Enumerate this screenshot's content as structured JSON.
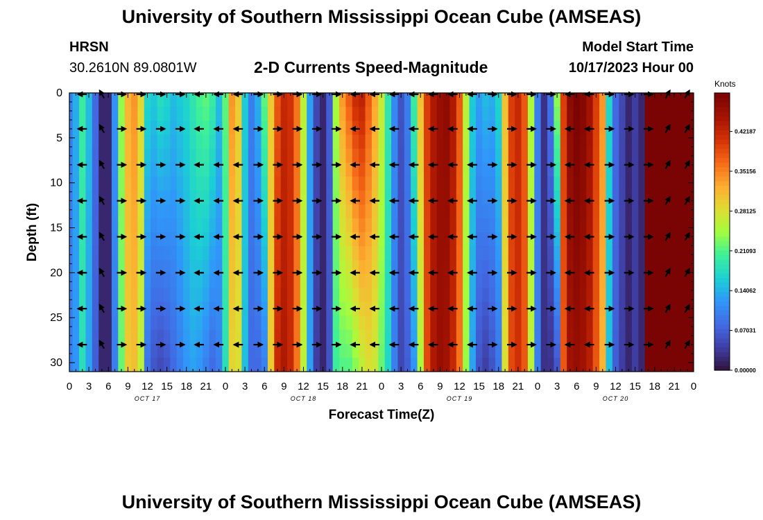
{
  "header": {
    "title": "University of Southern Mississippi Ocean Cube (AMSEAS)",
    "station": "HRSN",
    "coords": "30.2610N  89.0801W",
    "subtitle": "2-D Currents Speed-Magnitude",
    "model_label": "Model Start Time",
    "model_time": "10/17/2023 Hour 00"
  },
  "footer": {
    "title": "University of Southern Mississippi Ocean Cube (AMSEAS)"
  },
  "colors": {
    "arrow": "#000000",
    "frame": "#000000"
  },
  "chart_data": {
    "type": "heatmap",
    "title": "2-D Currents Speed-Magnitude",
    "xlabel": "Forecast Time(Z)",
    "ylabel": "Depth (ft)",
    "xlim": [
      0,
      96
    ],
    "ylim": [
      0,
      31
    ],
    "y_reversed": true,
    "x_ticks": [
      0,
      3,
      6,
      9,
      12,
      15,
      18,
      21,
      24,
      27,
      30,
      33,
      36,
      39,
      42,
      45,
      48,
      51,
      54,
      57,
      60,
      63,
      66,
      69,
      72,
      75,
      78,
      81,
      84,
      87,
      90,
      93,
      96
    ],
    "x_tick_labels": [
      "0",
      "3",
      "6",
      "9",
      "12",
      "15",
      "18",
      "21",
      "0",
      "3",
      "6",
      "9",
      "12",
      "15",
      "18",
      "21",
      "0",
      "3",
      "6",
      "9",
      "12",
      "15",
      "18",
      "21",
      "0",
      "3",
      "6",
      "9",
      "12",
      "15",
      "18",
      "21",
      "0"
    ],
    "y_ticks": [
      0,
      5,
      10,
      15,
      20,
      25,
      30
    ],
    "y_tick_labels": [
      "0",
      "5",
      "10",
      "15",
      "20",
      "25",
      "30"
    ],
    "day_labels": [
      {
        "hour": 12,
        "text": "OCT 17"
      },
      {
        "hour": 36,
        "text": "OCT 18"
      },
      {
        "hour": 60,
        "text": "OCT 19"
      },
      {
        "hour": 84,
        "text": "OCT 20"
      }
    ],
    "colorbar": {
      "label": "Knots",
      "min": 0.0,
      "max": 0.49,
      "tick_values": [
        0.0,
        0.07031,
        0.14062,
        0.21093,
        0.28125,
        0.35156,
        0.42187
      ],
      "tick_labels": [
        "0.00000",
        "0.07031",
        "0.14062",
        "0.21093",
        "0.28125",
        "0.35156",
        "0.42187"
      ]
    },
    "time_hours": [
      0,
      1,
      2,
      3,
      4,
      5,
      6,
      7,
      8,
      9,
      10,
      11,
      12,
      13,
      14,
      15,
      16,
      17,
      18,
      19,
      20,
      21,
      22,
      23,
      24,
      25,
      26,
      27,
      28,
      29,
      30,
      31,
      32,
      33,
      34,
      35,
      36,
      37,
      38,
      39,
      40,
      41,
      42,
      43,
      44,
      45,
      46,
      47,
      48,
      49,
      50,
      51,
      52,
      53,
      54,
      55,
      56,
      57,
      58,
      59,
      60,
      61,
      62,
      63,
      64,
      65,
      66,
      67,
      68,
      69,
      70,
      71,
      72,
      73,
      74,
      75,
      76,
      77,
      78,
      79,
      80,
      81,
      82,
      83,
      84,
      85,
      86,
      87,
      88,
      89,
      90,
      91,
      92,
      93,
      94,
      95,
      96
    ],
    "speed_surface_knots": [
      0.1,
      0.14,
      0.2,
      0.15,
      0.08,
      0.02,
      0.02,
      0.12,
      0.24,
      0.32,
      0.34,
      0.29,
      0.17,
      0.16,
      0.18,
      0.17,
      0.15,
      0.16,
      0.17,
      0.19,
      0.21,
      0.22,
      0.2,
      0.15,
      0.22,
      0.34,
      0.3,
      0.16,
      0.1,
      0.14,
      0.22,
      0.3,
      0.38,
      0.42,
      0.41,
      0.36,
      0.26,
      0.13,
      0.05,
      0.02,
      0.07,
      0.25,
      0.34,
      0.38,
      0.42,
      0.43,
      0.38,
      0.33,
      0.27,
      0.19,
      0.11,
      0.06,
      0.1,
      0.2,
      0.31,
      0.4,
      0.44,
      0.46,
      0.47,
      0.44,
      0.38,
      0.26,
      0.16,
      0.13,
      0.15,
      0.14,
      0.17,
      0.31,
      0.4,
      0.42,
      0.38,
      0.25,
      0.1,
      0.03,
      0.09,
      0.24,
      0.4,
      0.47,
      0.49,
      0.48,
      0.45,
      0.4,
      0.34,
      0.17,
      0.08,
      0.05,
      0.02,
      0.04,
      0.02
    ],
    "speed_bottom_knots": [
      0.1,
      0.12,
      0.18,
      0.13,
      0.07,
      0.02,
      0.02,
      0.1,
      0.22,
      0.3,
      0.31,
      0.26,
      0.09,
      0.06,
      0.05,
      0.06,
      0.08,
      0.1,
      0.12,
      0.13,
      0.12,
      0.1,
      0.08,
      0.1,
      0.18,
      0.29,
      0.28,
      0.15,
      0.08,
      0.08,
      0.1,
      0.3,
      0.42,
      0.44,
      0.42,
      0.36,
      0.26,
      0.13,
      0.04,
      0.02,
      0.06,
      0.2,
      0.21,
      0.21,
      0.23,
      0.26,
      0.28,
      0.27,
      0.22,
      0.17,
      0.1,
      0.05,
      0.07,
      0.12,
      0.25,
      0.39,
      0.44,
      0.46,
      0.45,
      0.42,
      0.36,
      0.24,
      0.13,
      0.06,
      0.04,
      0.06,
      0.09,
      0.28,
      0.39,
      0.41,
      0.38,
      0.26,
      0.1,
      0.03,
      0.03,
      0.06,
      0.38,
      0.45,
      0.46,
      0.45,
      0.43,
      0.38,
      0.32,
      0.15,
      0.07,
      0.04,
      0.02,
      0.04,
      0.02
    ],
    "arrow_depths_ft": [
      0,
      4,
      8,
      12,
      16,
      20,
      24,
      28
    ],
    "arrow_times_h": [
      2,
      5,
      8,
      11,
      14,
      17,
      20,
      23,
      26,
      29,
      32,
      35,
      38,
      41,
      44,
      47,
      50,
      53,
      56,
      59,
      62,
      65,
      68,
      71,
      74,
      77,
      80,
      83,
      86,
      89,
      92,
      95
    ],
    "arrow_angles_deg": [
      180,
      240,
      0,
      0,
      0,
      0,
      180,
      180,
      180,
      0,
      0,
      0,
      0,
      0,
      180,
      180,
      180,
      180,
      180,
      180,
      180,
      0,
      0,
      0,
      0,
      180,
      180,
      0,
      0,
      0,
      300,
      300
    ]
  }
}
